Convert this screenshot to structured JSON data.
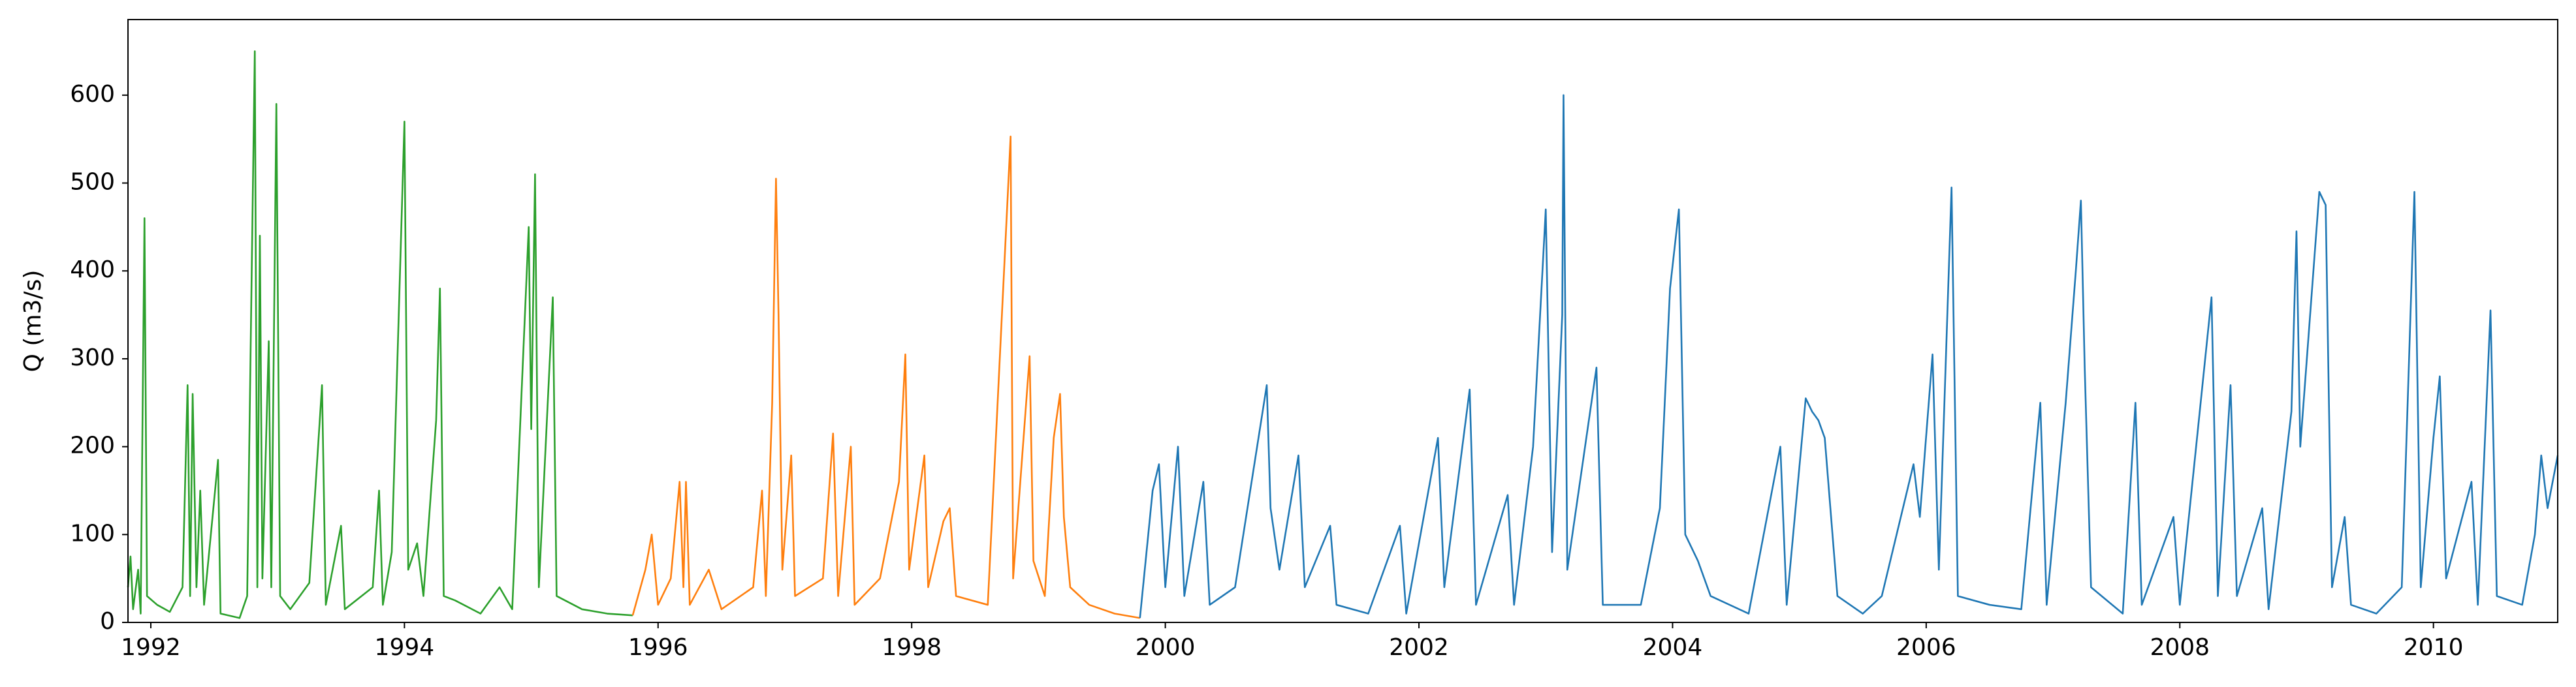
{
  "chart_data": {
    "type": "line",
    "y_label": "Q (m3/s)",
    "xlim": [
      1991.82,
      2010.98
    ],
    "xticks": [
      1992,
      1994,
      1996,
      1998,
      2000,
      2002,
      2004,
      2006,
      2008,
      2010
    ],
    "ylim": [
      0,
      686
    ],
    "yticks": [
      0,
      100,
      200,
      300,
      400,
      500,
      600
    ],
    "grid": false,
    "series": [
      {
        "color": "#2ca02c",
        "x": [
          1991.82,
          1991.84,
          1991.86,
          1991.9,
          1991.92,
          1991.95,
          1991.97,
          1992.05,
          1992.15,
          1992.25,
          1992.29,
          1992.31,
          1992.33,
          1992.36,
          1992.39,
          1992.42,
          1992.53,
          1992.55,
          1992.7,
          1992.76,
          1992.82,
          1992.84,
          1992.86,
          1992.88,
          1992.93,
          1992.95,
          1992.99,
          1993.02,
          1993.1,
          1993.25,
          1993.35,
          1993.38,
          1993.5,
          1993.53,
          1993.75,
          1993.8,
          1993.83,
          1993.9,
          1994.0,
          1994.03,
          1994.1,
          1994.15,
          1994.25,
          1994.28,
          1994.31,
          1994.4,
          1994.6,
          1994.75,
          1994.85,
          1994.98,
          1995.0,
          1995.03,
          1995.06,
          1995.17,
          1995.2,
          1995.4,
          1995.6,
          1995.8
        ],
        "values": [
          40,
          75,
          15,
          60,
          10,
          460,
          30,
          20,
          12,
          40,
          270,
          30,
          260,
          40,
          150,
          20,
          185,
          10,
          5,
          30,
          650,
          40,
          440,
          50,
          320,
          40,
          590,
          30,
          15,
          45,
          270,
          20,
          110,
          15,
          40,
          150,
          20,
          80,
          570,
          60,
          90,
          30,
          230,
          380,
          30,
          25,
          10,
          40,
          15,
          450,
          220,
          510,
          40,
          370,
          30,
          15,
          10,
          8
        ]
      },
      {
        "color": "#ff7f0e",
        "x": [
          1995.8,
          1995.9,
          1995.95,
          1996.0,
          1996.1,
          1996.17,
          1996.2,
          1996.22,
          1996.25,
          1996.4,
          1996.5,
          1996.75,
          1996.82,
          1996.85,
          1996.9,
          1996.93,
          1996.95,
          1996.98,
          1997.05,
          1997.08,
          1997.3,
          1997.38,
          1997.42,
          1997.52,
          1997.55,
          1997.75,
          1997.9,
          1997.95,
          1997.98,
          1998.1,
          1998.13,
          1998.25,
          1998.3,
          1998.35,
          1998.6,
          1998.78,
          1998.8,
          1998.93,
          1998.96,
          1999.05,
          1999.12,
          1999.17,
          1999.2,
          1999.25,
          1999.4,
          1999.6,
          1999.8
        ],
        "values": [
          8,
          60,
          100,
          20,
          50,
          160,
          40,
          160,
          20,
          60,
          15,
          40,
          150,
          30,
          250,
          505,
          350,
          60,
          190,
          30,
          50,
          215,
          30,
          200,
          20,
          50,
          160,
          305,
          60,
          190,
          40,
          115,
          130,
          30,
          20,
          553,
          50,
          303,
          70,
          30,
          210,
          260,
          120,
          40,
          20,
          10,
          5
        ]
      },
      {
        "color": "#1f77b4",
        "x": [
          1999.8,
          1999.9,
          1999.95,
          2000.0,
          2000.1,
          2000.15,
          2000.3,
          2000.35,
          2000.55,
          2000.8,
          2000.83,
          2000.9,
          2001.05,
          2001.1,
          2001.3,
          2001.35,
          2001.6,
          2001.85,
          2001.9,
          2002.15,
          2002.2,
          2002.4,
          2002.45,
          2002.7,
          2002.75,
          2002.9,
          2003.0,
          2003.05,
          2003.13,
          2003.14,
          2003.17,
          2003.4,
          2003.45,
          2003.75,
          2003.9,
          2003.98,
          2004.05,
          2004.1,
          2004.2,
          2004.3,
          2004.6,
          2004.85,
          2004.9,
          2005.05,
          2005.1,
          2005.15,
          2005.2,
          2005.3,
          2005.5,
          2005.65,
          2005.9,
          2005.95,
          2006.05,
          2006.1,
          2006.2,
          2006.25,
          2006.5,
          2006.75,
          2006.9,
          2006.95,
          2007.1,
          2007.18,
          2007.22,
          2007.25,
          2007.3,
          2007.55,
          2007.65,
          2007.7,
          2007.95,
          2008.0,
          2008.25,
          2008.3,
          2008.4,
          2008.45,
          2008.65,
          2008.7,
          2008.88,
          2008.92,
          2008.95,
          2009.1,
          2009.15,
          2009.2,
          2009.3,
          2009.35,
          2009.55,
          2009.75,
          2009.85,
          2009.9,
          2010.0,
          2010.05,
          2010.1,
          2010.3,
          2010.35,
          2010.45,
          2010.5,
          2010.7,
          2010.8,
          2010.85,
          2010.9,
          2010.98
        ],
        "values": [
          5,
          150,
          180,
          40,
          200,
          30,
          160,
          20,
          40,
          270,
          130,
          60,
          190,
          40,
          110,
          20,
          10,
          110,
          10,
          210,
          40,
          265,
          20,
          145,
          20,
          200,
          470,
          80,
          350,
          600,
          60,
          290,
          20,
          20,
          130,
          380,
          470,
          100,
          70,
          30,
          10,
          200,
          20,
          255,
          240,
          230,
          210,
          30,
          10,
          30,
          180,
          120,
          305,
          60,
          495,
          30,
          20,
          15,
          250,
          20,
          250,
          400,
          480,
          290,
          40,
          10,
          250,
          20,
          120,
          20,
          370,
          30,
          270,
          30,
          130,
          15,
          240,
          445,
          200,
          490,
          475,
          40,
          120,
          20,
          10,
          40,
          490,
          40,
          210,
          280,
          50,
          160,
          20,
          355,
          30,
          20,
          100,
          190,
          130,
          190
        ]
      }
    ]
  }
}
